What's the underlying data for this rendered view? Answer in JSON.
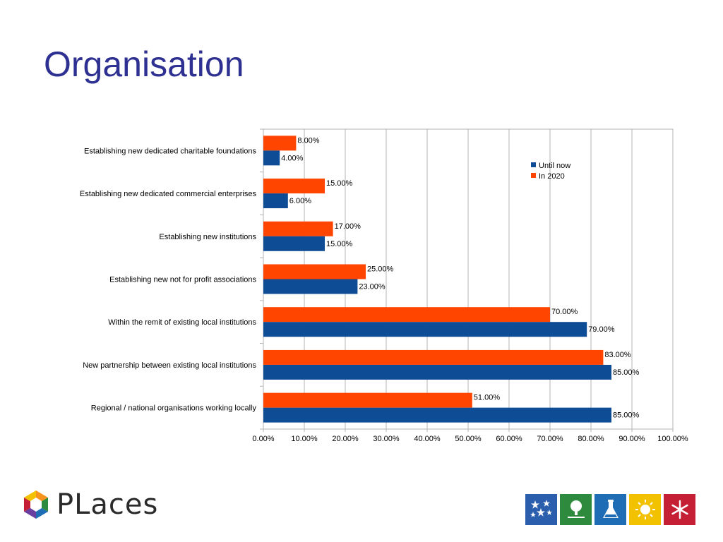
{
  "slide": {
    "title": "Organisation"
  },
  "chart_data": {
    "type": "bar",
    "orientation": "horizontal",
    "categories": [
      "Establishing new dedicated charitable foundations",
      "Establishing new dedicated commercial enterprises",
      "Establishing new institutions",
      "Establishing new not for profit associations",
      "Within the remit of existing local institutions",
      "New partnership between existing local institutions",
      "Regional / national organisations working locally"
    ],
    "series": [
      {
        "name": "Until now",
        "color": "#0f4c96",
        "values": [
          4,
          6,
          15,
          23,
          79,
          85,
          85
        ],
        "labels": [
          "4.00%",
          "6.00%",
          "15.00%",
          "23.00%",
          "79.00%",
          "85.00%",
          "85.00%"
        ]
      },
      {
        "name": "In 2020",
        "color": "#ff4500",
        "values": [
          8,
          15,
          17,
          25,
          70,
          83,
          51
        ],
        "labels": [
          "8.00%",
          "15.00%",
          "17.00%",
          "25.00%",
          "70.00%",
          "83.00%",
          "51.00%"
        ]
      }
    ],
    "xlim": [
      0,
      100
    ],
    "xticks": [
      "0.00%",
      "10.00%",
      "20.00%",
      "30.00%",
      "40.00%",
      "50.00%",
      "60.00%",
      "70.00%",
      "80.00%",
      "90.00%",
      "100.00%"
    ],
    "grid": true,
    "legend": "top-right"
  },
  "logo": {
    "text": "PLaces"
  },
  "partners": [
    {
      "icon": "stars-icon",
      "color": "#2b5fae"
    },
    {
      "icon": "tree-icon",
      "color": "#2e8a3c"
    },
    {
      "icon": "flask-icon",
      "color": "#1f6db5"
    },
    {
      "icon": "sun-icon",
      "color": "#f2c200"
    },
    {
      "icon": "snowflake-icon",
      "color": "#c51f35"
    }
  ]
}
